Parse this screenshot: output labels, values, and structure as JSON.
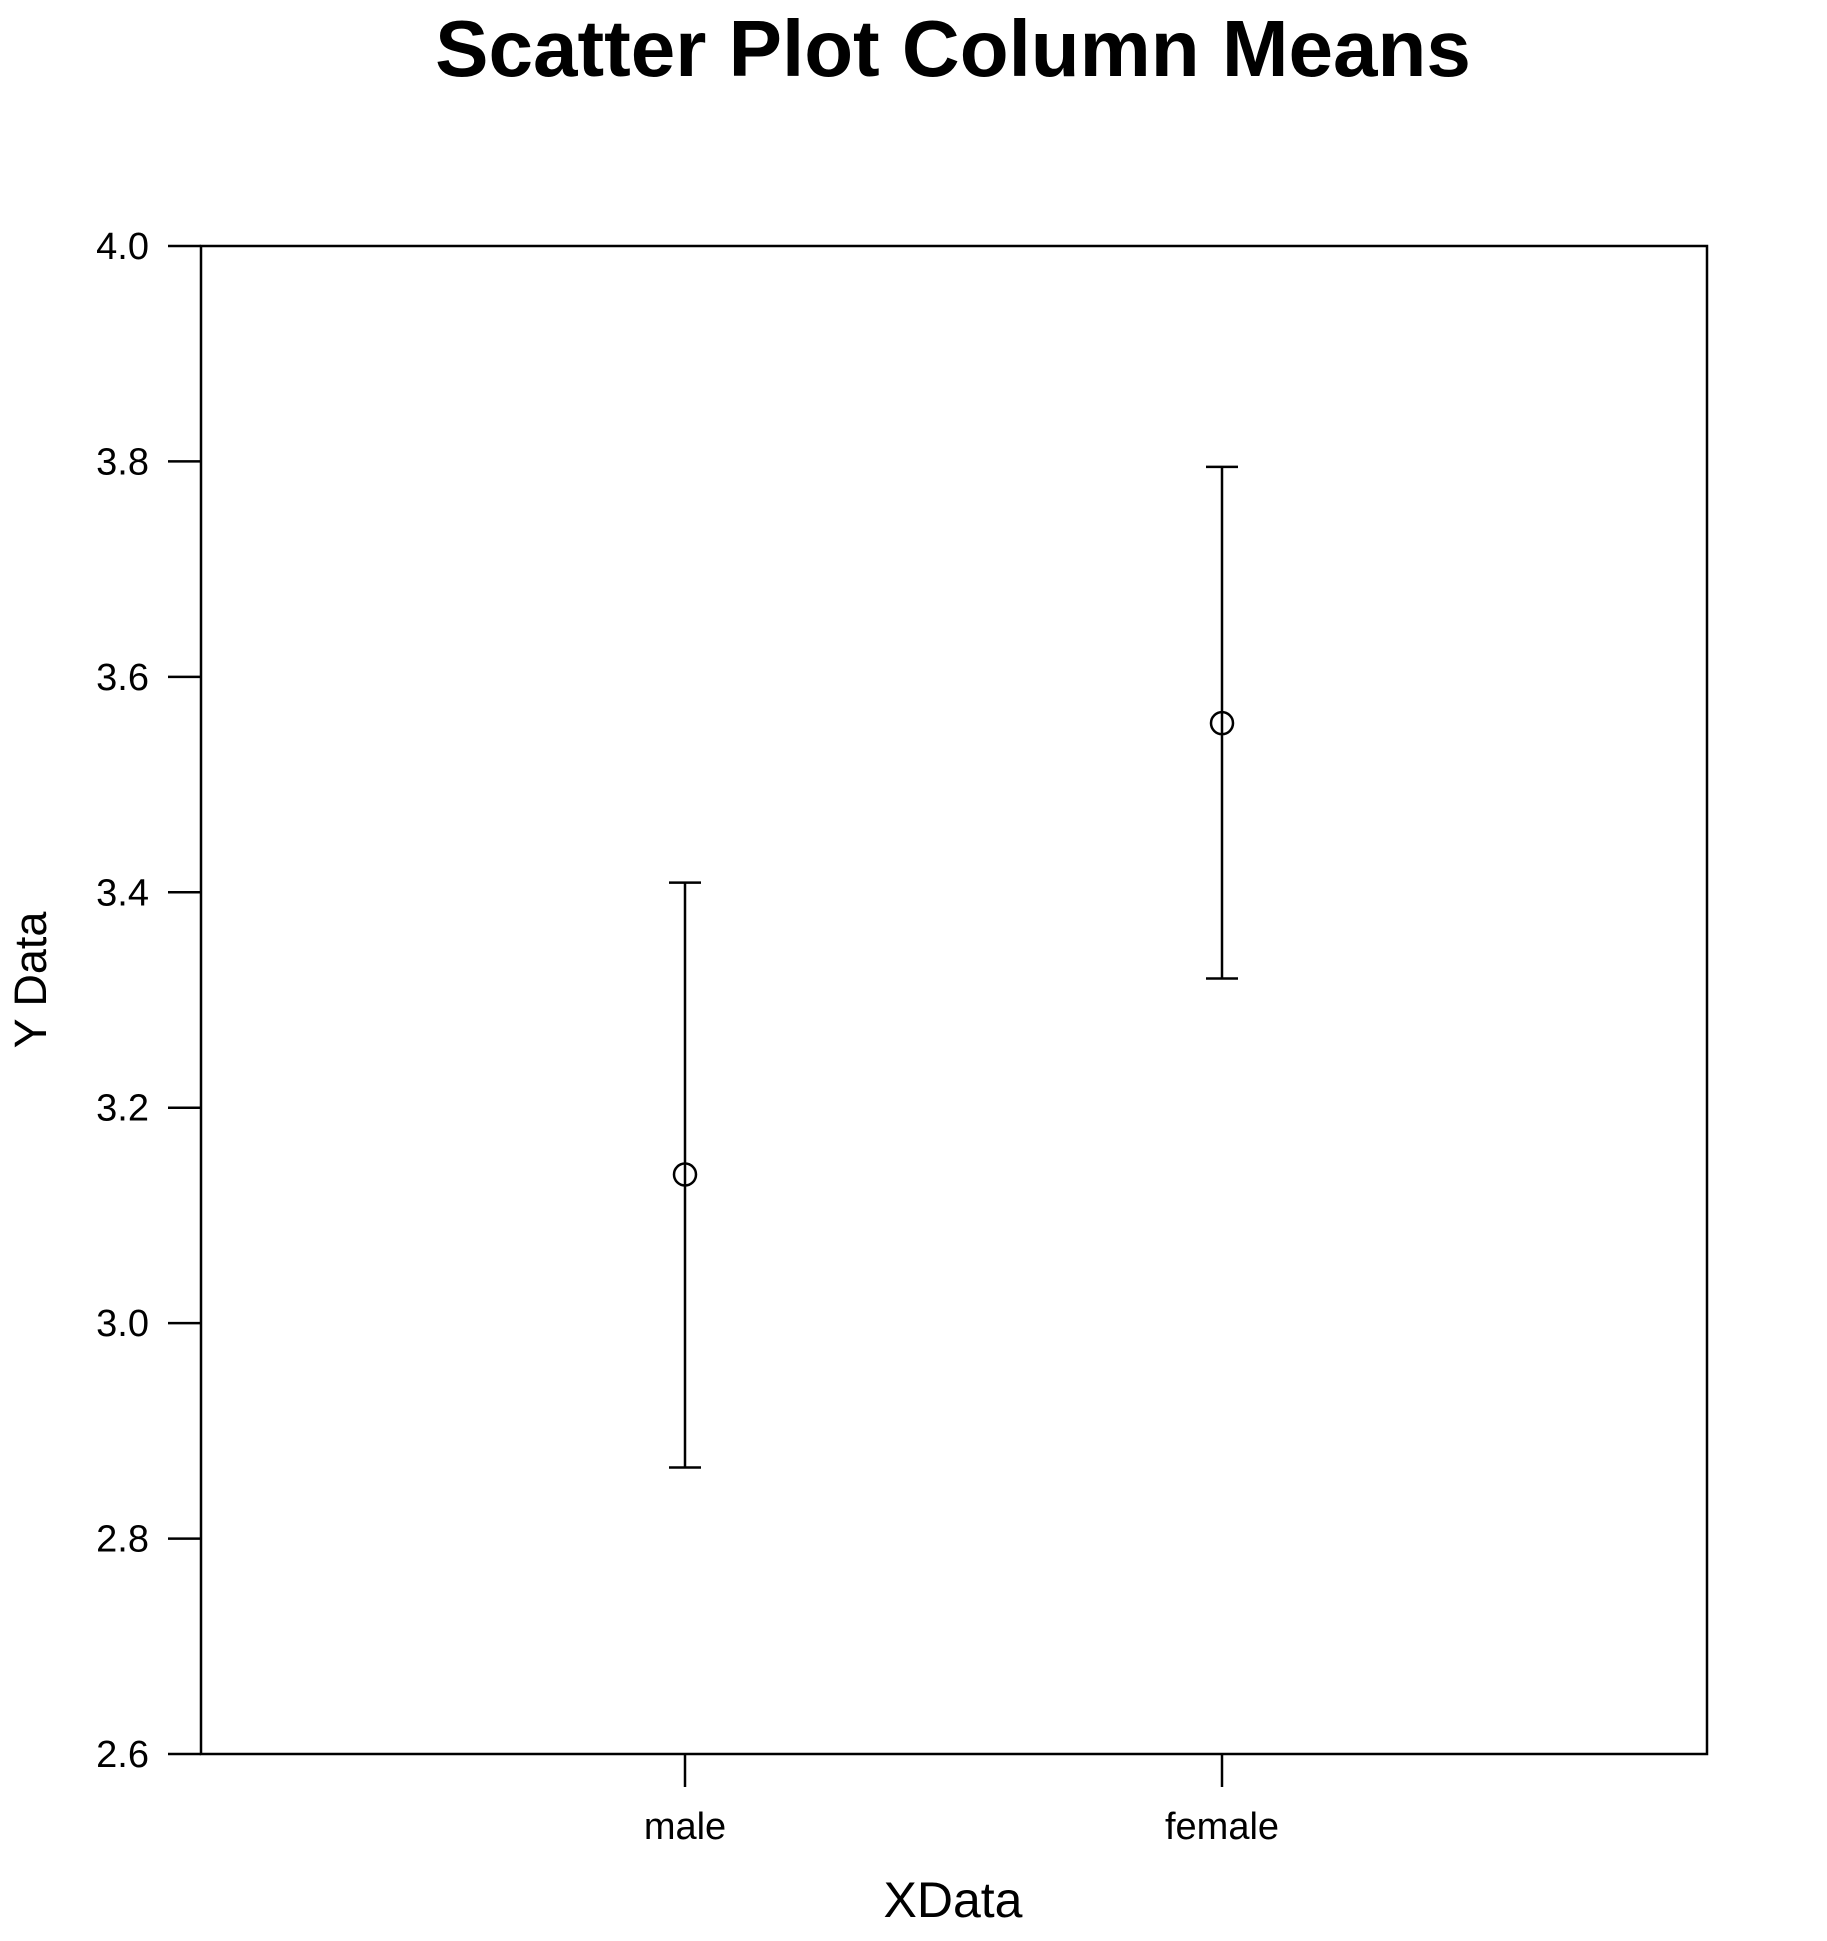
{
  "chart_data": {
    "type": "scatter",
    "title": "Scatter Plot Column Means",
    "xlabel": "XData",
    "ylabel": "Y Data",
    "categories": [
      "male",
      "female"
    ],
    "series": [
      {
        "values": [
          3.138,
          3.557
        ],
        "error_low": [
          2.866,
          3.32
        ],
        "error_high": [
          3.409,
          3.795
        ]
      }
    ],
    "ylim": [
      2.6,
      4.0
    ],
    "yticks": [
      "2.6",
      "2.8",
      "3.0",
      "3.2",
      "3.4",
      "3.6",
      "3.8",
      "4.0"
    ],
    "grid": false,
    "legend": "none"
  }
}
